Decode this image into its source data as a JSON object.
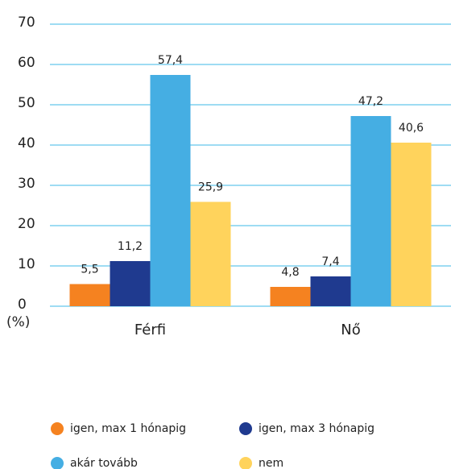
{
  "chart_data": {
    "type": "bar",
    "categories": [
      "Férfi",
      "Nő"
    ],
    "series": [
      {
        "name": "igen, max 1 hónapig",
        "color": "#f58220",
        "values": [
          5.5,
          4.8
        ],
        "value_labels": [
          "5,5",
          "4,8"
        ]
      },
      {
        "name": "igen, max 3 hónapig",
        "color": "#1f3a8f",
        "values": [
          11.2,
          7.4
        ],
        "value_labels": [
          "11,2",
          "7,4"
        ]
      },
      {
        "name": "akár tovább",
        "color": "#45aee3",
        "values": [
          57.4,
          47.2
        ],
        "value_labels": [
          "57,4",
          "47,2"
        ]
      },
      {
        "name": "nem",
        "color": "#ffd35c",
        "values": [
          25.9,
          40.6
        ],
        "value_labels": [
          "25,9",
          "40,6"
        ]
      }
    ],
    "y_label": "(%)",
    "ylim": [
      0,
      70
    ],
    "yticks": [
      0,
      10,
      20,
      30,
      40,
      50,
      60,
      70
    ],
    "grid": true
  }
}
